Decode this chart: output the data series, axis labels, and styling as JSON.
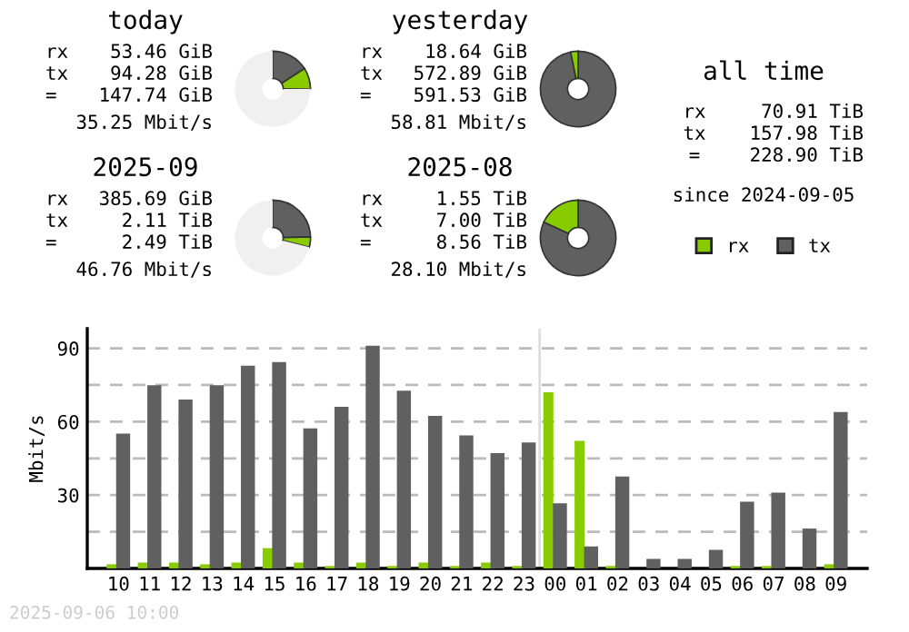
{
  "chart_data": [
    {
      "type": "donut",
      "title": "today",
      "categories": [
        null,
        null,
        null
      ],
      "values": [
        15.9,
        9.0,
        75.1
      ],
      "colors": [
        "#606060",
        "#88cc00",
        "#f0f0f0"
      ],
      "annotations": [
        "rx",
        "53.46 GiB",
        "tx",
        "94.28 GiB",
        "=",
        "147.74 GiB",
        "35.25 Mbit/s"
      ]
    },
    {
      "type": "donut",
      "title": "yesterday",
      "categories": [
        null,
        null,
        null
      ],
      "values": [
        96.85,
        3.15,
        0
      ],
      "colors": [
        "#606060",
        "#88cc00",
        "#f0f0f0"
      ],
      "annotations": [
        "rx",
        "18.64 GiB",
        "tx",
        "572.89 GiB",
        "=",
        "591.53 GiB",
        "58.81 Mbit/s"
      ]
    },
    {
      "type": "other",
      "title": "all time",
      "annotations": [
        "rx",
        "70.91 TiB",
        "tx",
        "157.98 TiB",
        "=",
        "228.90 TiB",
        "since 2024-09-05"
      ]
    },
    {
      "type": "donut",
      "title": "2025-09",
      "categories": [
        null,
        null,
        null
      ],
      "values": [
        24.6,
        4.4,
        71.0
      ],
      "colors": [
        "#606060",
        "#88cc00",
        "#f0f0f0"
      ],
      "annotations": [
        "rx",
        "385.69 GiB",
        "tx",
        "2.11 TiB",
        "=",
        "2.49 TiB",
        "46.76 Mbit/s"
      ]
    },
    {
      "type": "donut",
      "title": "2025-08",
      "categories": [
        null,
        null,
        null
      ],
      "values": [
        81.9,
        18.1,
        0
      ],
      "colors": [
        "#606060",
        "#88cc00",
        "#f0f0f0"
      ],
      "annotations": [
        "rx",
        "1.55 TiB",
        "tx",
        "7.00 TiB",
        "=",
        "8.56 TiB",
        "28.10 Mbit/s"
      ]
    },
    {
      "type": "bar",
      "ylabel": "Mbit/s",
      "categories": [
        "10",
        "11",
        "12",
        "13",
        "14",
        "15",
        "16",
        "17",
        "18",
        "19",
        "20",
        "21",
        "22",
        "23",
        "00",
        "01",
        "02",
        "03",
        "04",
        "05",
        "06",
        "07",
        "08",
        "09"
      ],
      "series": [
        {
          "name": "rx",
          "color": "#88cc00",
          "values": [
            1.7,
            2.4,
            2.4,
            1.7,
            2.4,
            8.3,
            2.4,
            1.0,
            2.4,
            1.0,
            2.4,
            1.0,
            2.4,
            1.0,
            72.0,
            52.2,
            1.0,
            0,
            0,
            0,
            1.0,
            1.0,
            0,
            1.7
          ]
        },
        {
          "name": "tx",
          "color": "#606060",
          "values": [
            55.1,
            74.9,
            69.0,
            74.9,
            82.9,
            84.4,
            57.3,
            66.1,
            91.0,
            72.7,
            62.4,
            54.4,
            47.1,
            51.5,
            26.6,
            9.0,
            37.6,
            3.9,
            3.9,
            7.6,
            27.3,
            31.0,
            16.3,
            63.9
          ]
        }
      ],
      "ylim": [
        0,
        98
      ],
      "yticks": [
        {
          "value": 15,
          "label": null
        },
        30,
        {
          "value": 45,
          "label": null
        },
        60,
        {
          "value": 75,
          "label": null
        },
        90
      ],
      "grid": "y",
      "legend": "top right",
      "ref_lines": [
        {
          "axis": "x",
          "value": "00",
          "color": "#dddddd"
        }
      ],
      "annotations": [
        "2025-09-06 10:00"
      ]
    }
  ]
}
